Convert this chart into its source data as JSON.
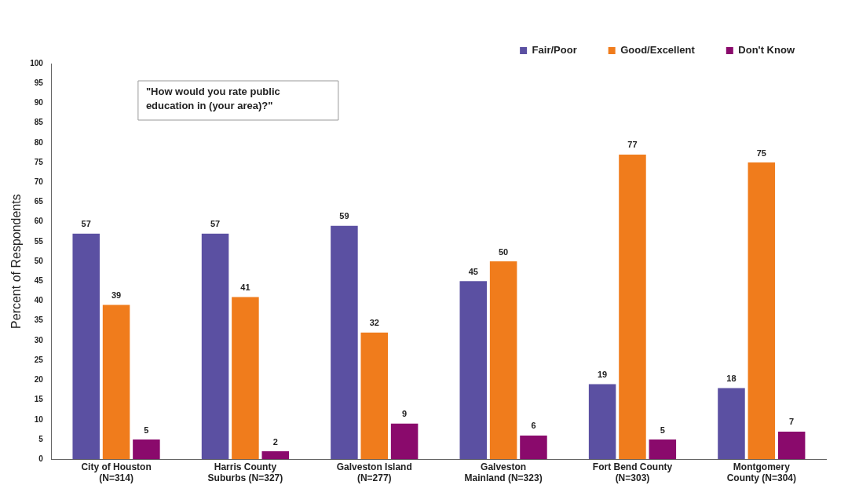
{
  "chart_data": {
    "type": "bar",
    "ylabel": "Percent of Respondents",
    "categories": [
      "City of Houston\n(N=314)",
      "Harris County\nSuburbs (N=327)",
      "Galveston Island\n(N=277)",
      "Galveston\nMainland (N=323)",
      "Fort Bend County\n(N=303)",
      "Montgomery\nCounty (N=304)"
    ],
    "series": [
      {
        "name": "Fair/Poor",
        "color": "#5b50a2",
        "values": [
          57,
          57,
          59,
          45,
          19,
          18
        ]
      },
      {
        "name": "Good/Excellent",
        "color": "#f07c1c",
        "values": [
          39,
          41,
          32,
          50,
          77,
          75
        ]
      },
      {
        "name": "Don't Know",
        "color": "#8a0a6c",
        "values": [
          5,
          2,
          9,
          6,
          5,
          7
        ]
      }
    ],
    "ylim": [
      0,
      100
    ],
    "yticks": [
      0,
      5,
      10,
      15,
      20,
      25,
      30,
      35,
      40,
      45,
      50,
      55,
      60,
      65,
      70,
      75,
      80,
      85,
      90,
      95,
      100
    ],
    "grid": false,
    "legend": "top right",
    "data_labels": true,
    "annotations": [
      "\"How would you rate public education in (your area)?\""
    ]
  }
}
